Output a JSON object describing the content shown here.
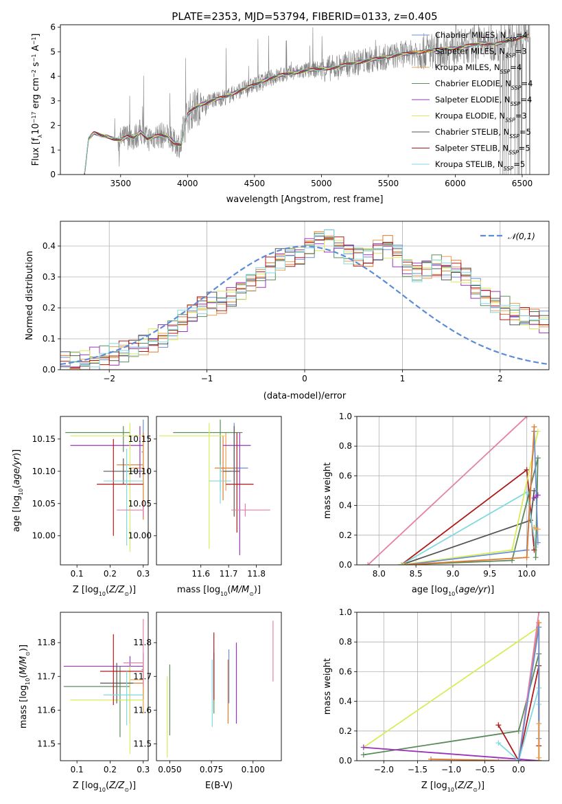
{
  "title": "PLATE=2353, MJD=53794, FIBERID=0133, z=0.405",
  "colors": {
    "c_miles": "#6a8fd4",
    "s_miles": "#e07a2e",
    "k_miles": "#e8a050",
    "c_elodie": "#5a8a5a",
    "s_elodie": "#9933bb",
    "k_elodie": "#d8ec5a",
    "c_stelib": "#555555",
    "s_stelib": "#b01818",
    "k_stelib": "#80d8e0",
    "pink": "#e57fa8",
    "spectrum": "#808080",
    "gauss": "#5b8bd6"
  },
  "chart_data": [
    {
      "type": "line",
      "title": "PLATE=2353, MJD=53794, FIBERID=0133, z=0.405",
      "xlabel": "wavelength [Angstrom, rest frame]",
      "ylabel": "Flux [f_λ 10^-17 erg cm^-2 s^-1 A^-1]",
      "xlim": [
        3050,
        6700
      ],
      "ylim": [
        0,
        6.1
      ],
      "xticks": [
        3500,
        4000,
        4500,
        5000,
        5500,
        6000,
        6500
      ],
      "yticks": [
        0,
        1,
        2,
        3,
        4,
        5,
        6
      ],
      "legend_position": "right",
      "legend": [
        "Chabrier MILES, N_SSP=4",
        "Salpeter MILES, N_SSP=3",
        "Kroupa MILES, N_SSP=4",
        "Chabrier ELODIE, N_SSP=4",
        "Salpeter ELODIE, N_SSP=4",
        "Kroupa ELODIE, N_SSP=3",
        "Chabrier STELIB, N_SSP=5",
        "Salpeter STELIB, N_SSP=5",
        "Kroupa STELIB, N_SSP=5"
      ],
      "model_continuum": {
        "x": [
          3230,
          3260,
          3300,
          3350,
          3400,
          3450,
          3500,
          3550,
          3600,
          3650,
          3700,
          3750,
          3800,
          3850,
          3900,
          3950,
          4000,
          4050,
          4100,
          4200,
          4300,
          4400,
          4500,
          4600,
          4700,
          4800,
          4900,
          5000,
          5100,
          5200,
          5300,
          5400,
          5500,
          5600,
          5700,
          5800,
          5900,
          6000,
          6100,
          6200,
          6300,
          6400,
          6500,
          6550
        ],
        "y": [
          0.0,
          1.45,
          1.7,
          1.6,
          1.55,
          1.45,
          1.4,
          1.55,
          1.5,
          1.75,
          1.45,
          1.55,
          1.6,
          1.55,
          1.3,
          1.2,
          2.45,
          2.7,
          2.85,
          3.05,
          3.2,
          3.45,
          3.65,
          3.9,
          4.05,
          4.15,
          4.25,
          4.3,
          4.35,
          4.5,
          4.6,
          4.7,
          4.8,
          4.9,
          4.95,
          5.05,
          5.1,
          5.15,
          5.25,
          5.35,
          5.3,
          5.45,
          5.6,
          5.65
        ]
      },
      "note_series": "Observed spectrum (grey) fluctuates around the model continuum with noise increasing toward red and blue ends."
    },
    {
      "type": "line",
      "xlabel": "(data-model)/error",
      "ylabel": "Normed distribution",
      "xlim": [
        -2.5,
        2.5
      ],
      "ylim": [
        0,
        0.48
      ],
      "xticks": [
        -2,
        -1,
        0,
        1,
        2
      ],
      "yticks": [
        0.0,
        0.1,
        0.2,
        0.3,
        0.4
      ],
      "legend": [
        "𝒩(0,1)"
      ],
      "legend_position": "top-right",
      "grid": true,
      "bin_width": 0.1,
      "bins_start": -2.5,
      "base_hist": [
        0.02,
        0.025,
        0.03,
        0.035,
        0.04,
        0.045,
        0.055,
        0.065,
        0.08,
        0.095,
        0.11,
        0.13,
        0.155,
        0.18,
        0.205,
        0.215,
        0.22,
        0.24,
        0.26,
        0.28,
        0.3,
        0.33,
        0.36,
        0.37,
        0.375,
        0.4,
        0.42,
        0.42,
        0.4,
        0.38,
        0.37,
        0.37,
        0.39,
        0.4,
        0.37,
        0.33,
        0.32,
        0.33,
        0.34,
        0.33,
        0.32,
        0.3,
        0.26,
        0.24,
        0.22,
        0.2,
        0.18,
        0.17,
        0.16,
        0.15
      ]
    },
    {
      "type": "scatter",
      "xlabel": "Z [log10(Z/Z⊙)]",
      "ylabel": "age  [log10(age/yr)]",
      "xlim": [
        0.05,
        0.315
      ],
      "ylim": [
        9.955,
        10.185
      ],
      "xticks": [
        0.1,
        0.2,
        0.3
      ],
      "yticks": [
        10.0,
        10.05,
        10.1,
        10.15
      ],
      "points": [
        {
          "model": "c_miles",
          "x": 0.3,
          "y": 10.13,
          "xerr": [
            0.005,
            0.0
          ],
          "yerr": [
            0.1,
            0.05
          ]
        },
        {
          "model": "s_miles",
          "x": 0.3,
          "y": 10.11,
          "xerr": [
            0.08,
            0.0
          ],
          "yerr": [
            0.085,
            0.05
          ]
        },
        {
          "model": "k_miles",
          "x": 0.3,
          "y": 10.105,
          "xerr": [
            0.04,
            0.0
          ],
          "yerr": [
            0.05,
            0.05
          ]
        },
        {
          "model": "c_elodie",
          "x": 0.24,
          "y": 10.16,
          "xerr": [
            0.175,
            0.02
          ],
          "yerr": [
            0.03,
            0.01
          ]
        },
        {
          "model": "s_elodie",
          "x": 0.29,
          "y": 10.14,
          "xerr": [
            0.21,
            0.01
          ],
          "yerr": [
            0.05,
            0.03
          ]
        },
        {
          "model": "k_elodie",
          "x": 0.26,
          "y": 10.155,
          "xerr": [
            0.18,
            0.04
          ],
          "yerr": [
            0.18,
            0.02
          ]
        },
        {
          "model": "c_stelib",
          "x": 0.24,
          "y": 10.1,
          "xerr": [
            0.06,
            0.06
          ],
          "yerr": [
            0.02,
            0.02
          ]
        },
        {
          "model": "s_stelib",
          "x": 0.21,
          "y": 10.08,
          "xerr": [
            0.05,
            0.09
          ],
          "yerr": [
            0.08,
            0.07
          ]
        },
        {
          "model": "k_stelib",
          "x": 0.25,
          "y": 10.085,
          "xerr": [
            0.07,
            0.05
          ],
          "yerr": [
            0.1,
            0.05
          ]
        },
        {
          "model": "pink",
          "x": 0.3,
          "y": 10.04,
          "xerr": [
            0.08,
            0.0
          ],
          "yerr": [
            0.01,
            0.01
          ]
        }
      ]
    },
    {
      "type": "scatter",
      "xlabel": "mass [log10(M/M⊙)]",
      "ylabel": "",
      "xlim": [
        11.44,
        11.89
      ],
      "ylim": [
        9.955,
        10.185
      ],
      "xticks": [
        11.6,
        11.7,
        11.8
      ],
      "yticks": [
        10.0,
        10.05,
        10.1,
        10.15
      ],
      "points": [
        {
          "model": "c_miles",
          "x": 11.72,
          "y": 10.105,
          "xerr": [
            0.05,
            0.05
          ],
          "yerr": [
            0.02,
            0.07
          ]
        },
        {
          "model": "s_miles",
          "x": 11.68,
          "y": 10.105,
          "xerr": [
            0.03,
            0.04
          ],
          "yerr": [
            0.05,
            0.05
          ]
        },
        {
          "model": "k_miles",
          "x": 11.69,
          "y": 10.1,
          "xerr": [
            0.02,
            0.02
          ],
          "yerr": [
            0.03,
            0.06
          ]
        },
        {
          "model": "c_elodie",
          "x": 11.67,
          "y": 10.16,
          "xerr": [
            0.17,
            0.08
          ],
          "yerr": [
            0.09,
            0.02
          ]
        },
        {
          "model": "s_elodie",
          "x": 11.74,
          "y": 10.14,
          "xerr": [
            0.06,
            0.04
          ],
          "yerr": [
            0.17,
            0.02
          ]
        },
        {
          "model": "k_elodie",
          "x": 11.63,
          "y": 10.155,
          "xerr": [
            0.18,
            0.06
          ],
          "yerr": [
            0.175,
            0.02
          ]
        },
        {
          "model": "c_stelib",
          "x": 11.72,
          "y": 10.1,
          "xerr": [
            0.04,
            0.02
          ],
          "yerr": [
            0.07,
            0.07
          ]
        },
        {
          "model": "s_stelib",
          "x": 11.73,
          "y": 10.08,
          "xerr": [
            0.04,
            0.06
          ],
          "yerr": [
            0.075,
            0.08
          ]
        },
        {
          "model": "k_stelib",
          "x": 11.67,
          "y": 10.085,
          "xerr": [
            0.04,
            0.04
          ],
          "yerr": [
            0.035,
            0.025
          ]
        },
        {
          "model": "pink",
          "x": 11.76,
          "y": 10.04,
          "xerr": [
            0.05,
            0.09
          ],
          "yerr": [
            0.01,
            0.01
          ]
        }
      ]
    },
    {
      "type": "line",
      "xlabel": "age  [log10(age/yr)]",
      "ylabel": "mass weight",
      "xlim": [
        7.7,
        10.3
      ],
      "ylim": [
        0,
        1.0
      ],
      "xticks": [
        8.0,
        8.5,
        9.0,
        9.5,
        10.0
      ],
      "yticks": [
        0.0,
        0.2,
        0.4,
        0.6,
        0.8,
        1.0
      ],
      "grid": true,
      "series": [
        {
          "model": "pink",
          "x": [
            7.85,
            10.0
          ],
          "y": [
            0.0,
            1.0
          ]
        },
        {
          "model": "s_stelib",
          "x": [
            8.3,
            10.0,
            10.1
          ],
          "y": [
            0.0,
            0.64,
            0.1
          ]
        },
        {
          "model": "c_stelib",
          "x": [
            8.3,
            10.05,
            10.1
          ],
          "y": [
            0.0,
            0.3,
            0.5
          ]
        },
        {
          "model": "k_stelib",
          "x": [
            8.3,
            10.0,
            10.12
          ],
          "y": [
            0.0,
            0.49,
            0.12
          ]
        },
        {
          "model": "c_elodie",
          "x": [
            8.3,
            9.8,
            10.15,
            10.12
          ],
          "y": [
            0.0,
            0.03,
            0.72,
            0.05
          ]
        },
        {
          "model": "k_elodie",
          "x": [
            8.3,
            9.8,
            10.15
          ],
          "y": [
            0.0,
            0.1,
            0.9
          ]
        },
        {
          "model": "c_miles",
          "x": [
            8.35,
            10.0,
            10.1,
            10.15
          ],
          "y": [
            0.0,
            0.1,
            0.9,
            0.15
          ]
        },
        {
          "model": "s_miles",
          "x": [
            8.35,
            10.0,
            10.1
          ],
          "y": [
            0.0,
            0.05,
            0.93
          ]
        },
        {
          "model": "s_elodie",
          "x": [
            10.1,
            10.15
          ],
          "y": [
            0.45,
            0.47
          ]
        },
        {
          "model": "k_miles",
          "x": [
            10.1,
            10.15
          ],
          "y": [
            0.25,
            0.24
          ]
        }
      ]
    },
    {
      "type": "scatter",
      "xlabel": "Z [log10(Z/Z⊙)]",
      "ylabel": "mass [log10(M/M⊙)]",
      "xlim": [
        0.05,
        0.315
      ],
      "ylim": [
        11.45,
        11.89
      ],
      "xticks": [
        0.1,
        0.2,
        0.3
      ],
      "yticks": [
        11.5,
        11.6,
        11.7,
        11.8
      ],
      "points": [
        {
          "model": "c_miles",
          "x": 0.3,
          "y": 11.72,
          "xerr": [
            0.005,
            0.0
          ],
          "yerr": [
            0.05,
            0.05
          ]
        },
        {
          "model": "s_miles",
          "x": 0.3,
          "y": 11.68,
          "xerr": [
            0.08,
            0.0
          ],
          "yerr": [
            0.05,
            0.05
          ]
        },
        {
          "model": "k_miles",
          "x": 0.3,
          "y": 11.69,
          "xerr": [
            0.04,
            0.0
          ],
          "yerr": [
            0.1,
            0.03
          ]
        },
        {
          "model": "c_elodie",
          "x": 0.23,
          "y": 11.67,
          "xerr": [
            0.17,
            0.03
          ],
          "yerr": [
            0.15,
            0.06
          ]
        },
        {
          "model": "s_elodie",
          "x": 0.26,
          "y": 11.73,
          "xerr": [
            0.2,
            0.04
          ],
          "yerr": [
            0.17,
            0.03
          ]
        },
        {
          "model": "k_elodie",
          "x": 0.26,
          "y": 11.63,
          "xerr": [
            0.18,
            0.04
          ],
          "yerr": [
            0.16,
            0.1
          ]
        },
        {
          "model": "c_stelib",
          "x": 0.22,
          "y": 11.68,
          "xerr": [
            0.05,
            0.05
          ],
          "yerr": [
            0.06,
            0.06
          ]
        },
        {
          "model": "s_stelib",
          "x": 0.21,
          "y": 11.715,
          "xerr": [
            0.04,
            0.09
          ],
          "yerr": [
            0.1,
            0.11
          ]
        },
        {
          "model": "k_stelib",
          "x": 0.25,
          "y": 11.645,
          "xerr": [
            0.07,
            0.05
          ],
          "yerr": [
            0.09,
            0.07
          ]
        },
        {
          "model": "pink",
          "x": 0.3,
          "y": 11.74,
          "xerr": [
            0.06,
            0.0
          ],
          "yerr": [
            0.07,
            0.13
          ]
        }
      ]
    },
    {
      "type": "scatter",
      "xlabel": "E(B-V)",
      "ylabel": "",
      "xlim": [
        0.042,
        0.117
      ],
      "ylim": [
        11.45,
        11.89
      ],
      "xticks": [
        0.05,
        0.075,
        0.1
      ],
      "yticks": [
        11.5,
        11.6,
        11.7,
        11.8
      ],
      "points": [
        {
          "model": "k_elodie",
          "x": 0.0485,
          "y": 11.58,
          "yerr": [
            0.12,
            0.12
          ]
        },
        {
          "model": "c_elodie",
          "x": 0.05,
          "y": 11.625,
          "yerr": [
            0.1,
            0.11
          ]
        },
        {
          "model": "k_stelib",
          "x": 0.0755,
          "y": 11.64,
          "yerr": [
            0.09,
            0.11
          ]
        },
        {
          "model": "c_elodie",
          "x": 0.0765,
          "y": 11.68,
          "yerr": [
            0.09,
            0.09
          ]
        },
        {
          "model": "s_stelib",
          "x": 0.0765,
          "y": 11.73,
          "yerr": [
            0.1,
            0.1
          ]
        },
        {
          "model": "s_miles",
          "x": 0.085,
          "y": 11.65,
          "yerr": [
            0.09,
            0.1
          ]
        },
        {
          "model": "c_miles",
          "x": 0.0855,
          "y": 11.7,
          "yerr": [
            0.08,
            0.08
          ]
        },
        {
          "model": "s_elodie",
          "x": 0.09,
          "y": 11.68,
          "yerr": [
            0.12,
            0.12
          ]
        },
        {
          "model": "pink",
          "x": 0.112,
          "y": 11.775,
          "yerr": [
            0.09,
            0.09
          ]
        }
      ]
    },
    {
      "type": "line",
      "xlabel": "Z [log10(Z/Z⊙)]",
      "ylabel": "mass weight",
      "xlim": [
        -2.4,
        0.45
      ],
      "ylim": [
        0,
        1.0
      ],
      "xticks": [
        -2.0,
        -1.5,
        -1.0,
        -0.5,
        0.0
      ],
      "yticks": [
        0.0,
        0.2,
        0.4,
        0.6,
        0.8,
        1.0
      ],
      "grid": true,
      "series": [
        {
          "model": "k_elodie",
          "x": [
            -2.3,
            0.3,
            0.3
          ],
          "y": [
            0.09,
            0.9,
            0.0
          ]
        },
        {
          "model": "c_elodie",
          "x": [
            -2.3,
            0.0,
            0.3,
            0.3
          ],
          "y": [
            0.04,
            0.2,
            0.72,
            0.0
          ]
        },
        {
          "model": "s_elodie",
          "x": [
            -2.3,
            0.3
          ],
          "y": [
            0.09,
            0.0
          ]
        },
        {
          "model": "s_miles",
          "x": [
            -1.3,
            0.0,
            0.3,
            0.3
          ],
          "y": [
            0.01,
            0.0,
            0.93,
            0.0
          ]
        },
        {
          "model": "pink",
          "x": [
            -0.3,
            0.0,
            0.3
          ],
          "y": [
            0.0,
            0.0,
            1.0
          ]
        },
        {
          "model": "s_stelib",
          "x": [
            -0.3,
            0.0,
            0.3,
            0.3
          ],
          "y": [
            0.24,
            0.0,
            0.64,
            0.1
          ]
        },
        {
          "model": "k_stelib",
          "x": [
            -0.3,
            0.0,
            0.3,
            0.3
          ],
          "y": [
            0.12,
            0.0,
            0.49,
            0.38
          ]
        },
        {
          "model": "c_miles",
          "x": [
            0.0,
            0.3,
            0.3
          ],
          "y": [
            0.0,
            0.9,
            0.15
          ]
        },
        {
          "model": "k_miles",
          "x": [
            0.3,
            0.3
          ],
          "y": [
            0.25,
            0.02
          ]
        }
      ]
    }
  ]
}
